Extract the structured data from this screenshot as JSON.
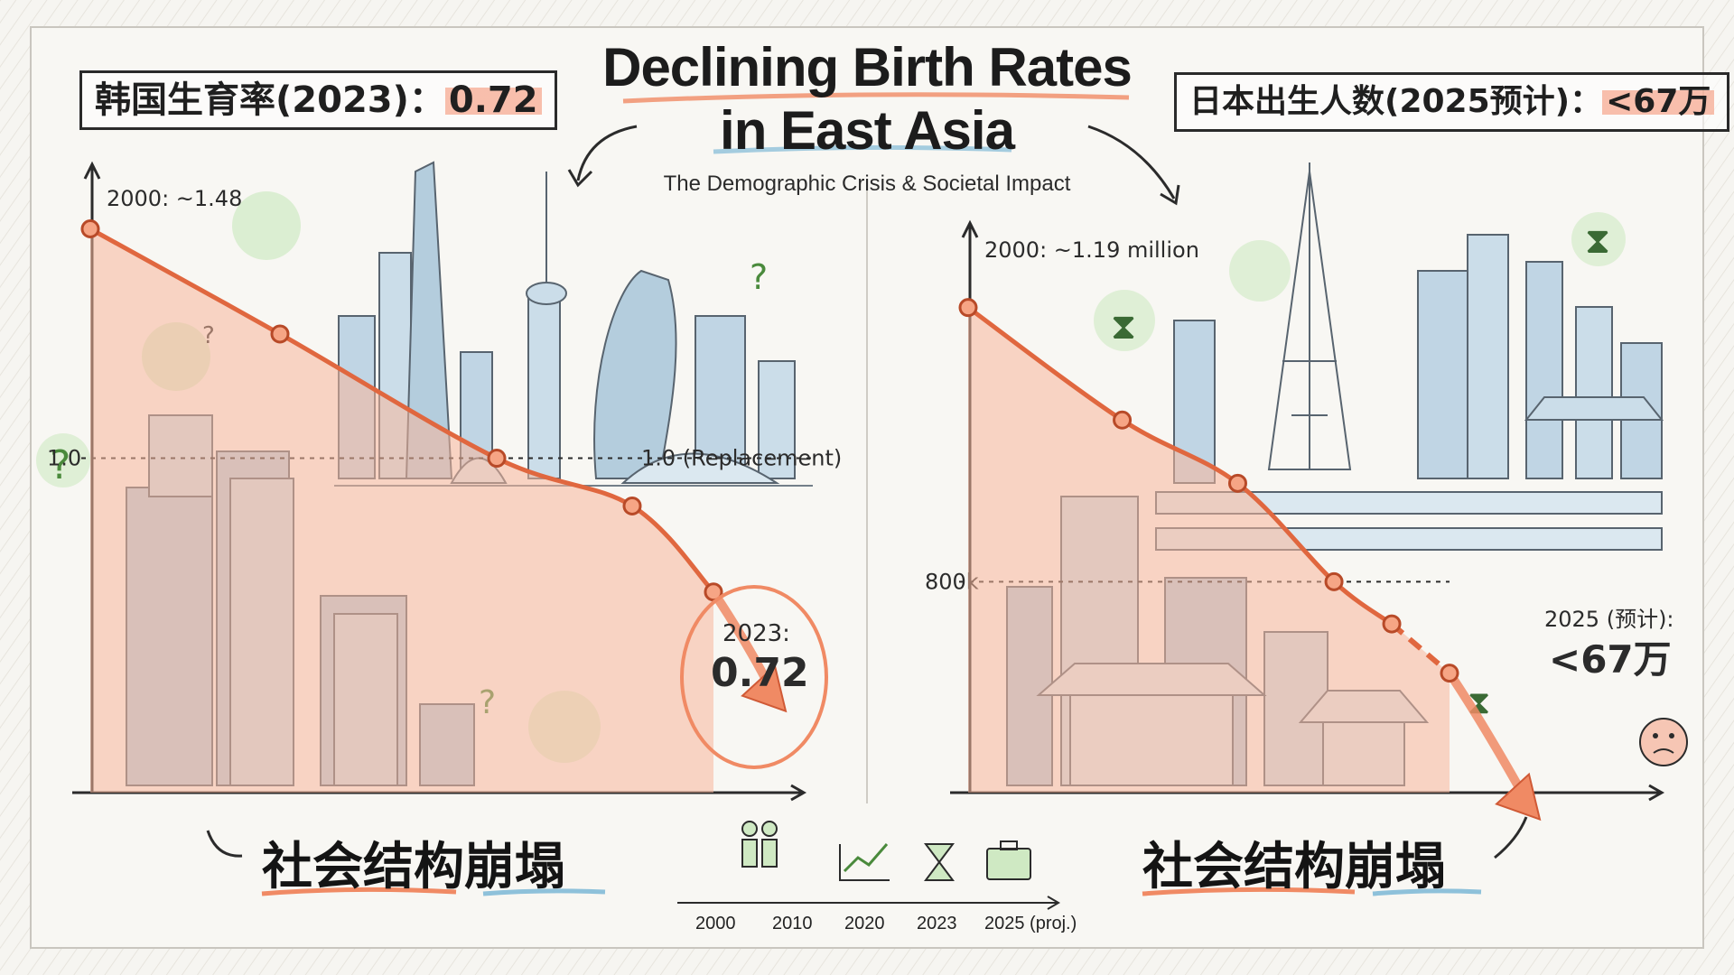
{
  "header": {
    "title_line1": "Declining Birth Rates",
    "title_line2": "in East Asia",
    "subtitle": "The Demographic Crisis & Societal Impact"
  },
  "left_stat": {
    "label": "韩国生育率(2023)：",
    "value": "0.72"
  },
  "right_stat": {
    "label": "日本出生人数(2025预计)：",
    "value": "<67万"
  },
  "left_caption": "社会结构崩塌",
  "right_caption": "社会结构崩塌",
  "timeline": {
    "labels": [
      "2000",
      "2010",
      "2020",
      "2023",
      "2025 (proj.)"
    ],
    "icons": [
      "family-icon",
      "growth-chart-icon",
      "hourglass-icon",
      "briefcase-icon"
    ]
  },
  "colors": {
    "accent": "#f08a64",
    "area": "#f7b79a",
    "sketch": "#2b2b2b",
    "building": "#a9c6da",
    "highlight_green": "#bfe3b0"
  },
  "chart_data": [
    {
      "type": "line",
      "title": "",
      "annotations": {
        "start_label": "2000: ~1.48",
        "reference_axis_label": "1.0",
        "reference_label": "1.0 (Replacement)",
        "end_label_year": "2023:",
        "end_label_value": "0.72"
      },
      "x_domain": [
        2000,
        2023
      ],
      "y_domain": [
        0.3,
        1.6
      ],
      "series": [
        {
          "x": [
            2000,
            2007,
            2015,
            2020,
            2023
          ],
          "y": [
            1.48,
            1.26,
            1.0,
            0.9,
            0.72
          ]
        }
      ],
      "reference_line": 1.0,
      "grid": false
    },
    {
      "type": "line",
      "title": "",
      "annotations": {
        "start_label": "2000: ~1.19 million",
        "reference_axis_label": "800k",
        "end_label_year": "2025 (预计):",
        "end_label_value": "<67万"
      },
      "x_domain": [
        2000,
        2025
      ],
      "y_domain": [
        500000,
        1300000
      ],
      "series": [
        {
          "x": [
            2000,
            2008,
            2014,
            2019,
            2022,
            2025
          ],
          "y": [
            1190000,
            1030000,
            940000,
            800000,
            740000,
            670000
          ],
          "projected_from": 2022
        }
      ],
      "reference_line": 800000,
      "grid": false
    }
  ]
}
